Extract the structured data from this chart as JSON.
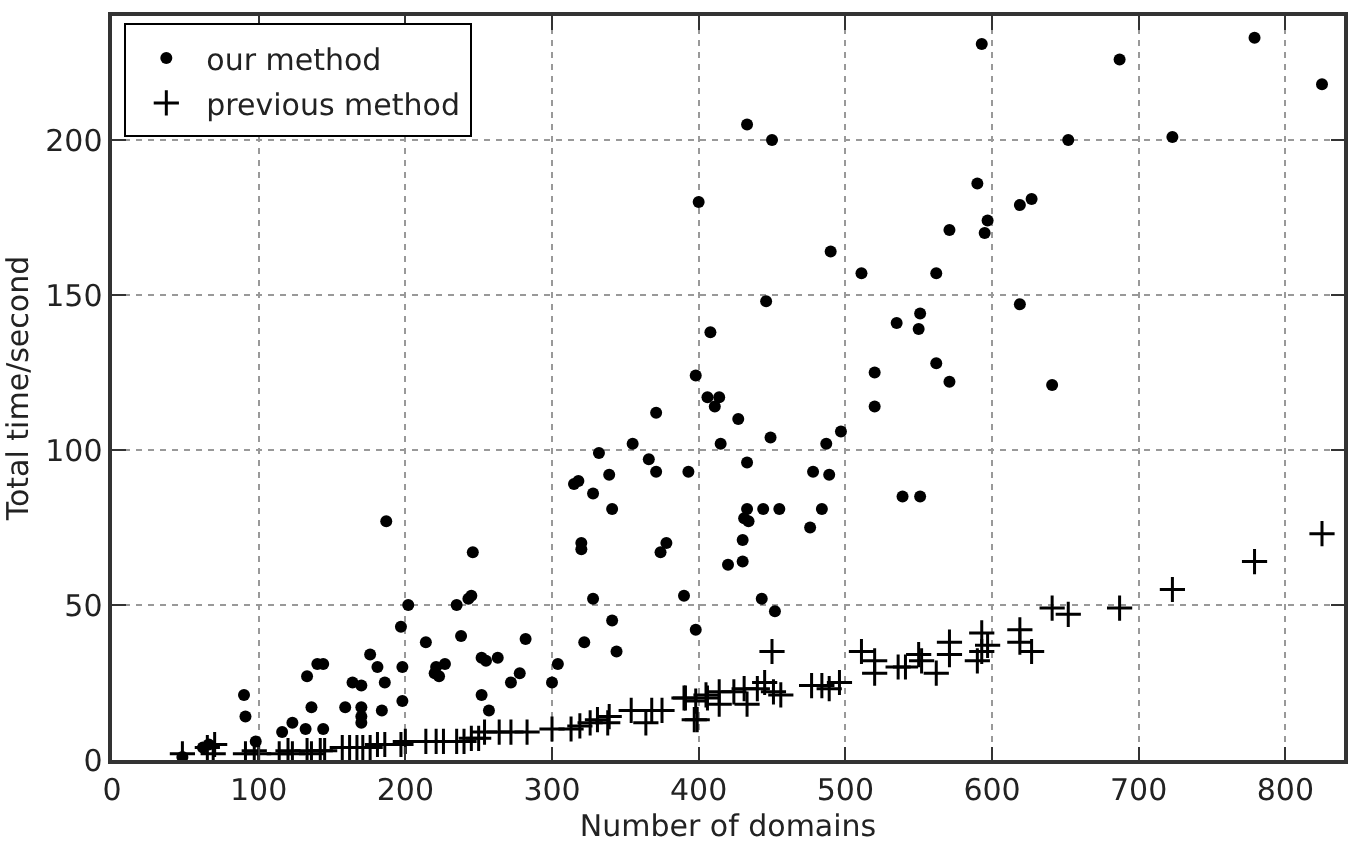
{
  "chart_data": {
    "type": "scatter",
    "xlabel": "Number of domains",
    "ylabel": "Total time/second",
    "xlim": [
      0,
      840
    ],
    "ylim": [
      0,
      240
    ],
    "xticks": [
      0,
      100,
      200,
      300,
      400,
      500,
      600,
      700,
      800
    ],
    "yticks": [
      0,
      50,
      100,
      150,
      200
    ],
    "grid": true,
    "legend": "top left",
    "series": [
      {
        "name": "our method",
        "color": "#000000",
        "marker": "circle",
        "x": [
          48,
          62,
          66,
          90,
          91,
          98,
          116,
          123,
          132,
          133,
          136,
          140,
          144,
          144,
          159,
          164,
          170,
          170,
          170,
          170,
          176,
          181,
          184,
          186,
          187,
          197,
          198,
          198,
          202,
          214,
          220,
          221,
          223,
          227,
          235,
          238,
          243,
          245,
          246,
          252,
          255,
          252,
          257,
          263,
          272,
          278,
          282,
          300,
          304,
          315,
          318,
          320,
          320,
          322,
          328,
          328,
          332,
          339,
          341,
          341,
          344,
          355,
          366,
          371,
          371,
          374,
          378,
          390,
          393,
          398,
          398,
          400,
          406,
          414,
          408,
          411,
          415,
          420,
          427,
          430,
          430,
          431,
          434,
          433,
          433,
          433,
          443,
          444,
          446,
          449,
          450,
          452,
          455,
          476,
          478,
          484,
          487,
          489,
          490,
          497,
          511,
          520,
          520,
          535,
          539,
          550,
          551,
          551,
          562,
          562,
          571,
          571,
          590,
          593,
          595,
          597,
          619,
          627,
          619,
          641,
          652,
          687,
          723,
          779,
          825
        ],
        "values": [
          1,
          4,
          5,
          21,
          14,
          6,
          9,
          12,
          10,
          27,
          17,
          31,
          31,
          10,
          17,
          25,
          24,
          17,
          14,
          12,
          34,
          30,
          16,
          25,
          77,
          43,
          30,
          19,
          50,
          38,
          28,
          30,
          27,
          31,
          50,
          40,
          52,
          53,
          67,
          33,
          32,
          21,
          16,
          33,
          25,
          28,
          39,
          25,
          31,
          89,
          90,
          70,
          68,
          38,
          86,
          52,
          99,
          92,
          81,
          45,
          35,
          102,
          97,
          112,
          93,
          67,
          70,
          53,
          93,
          124,
          42,
          180,
          117,
          117,
          138,
          114,
          102,
          63,
          110,
          71,
          64,
          78,
          77,
          205,
          96,
          81,
          52,
          81,
          148,
          104,
          200,
          48,
          81,
          75,
          93,
          81,
          102,
          92,
          164,
          106,
          157,
          114,
          125,
          141,
          85,
          139,
          144,
          85,
          157,
          128,
          171,
          122,
          186,
          231,
          170,
          174,
          179,
          181,
          147,
          121,
          200,
          226,
          201,
          233,
          218
        ]
      },
      {
        "name": "previous method",
        "color": "#000000",
        "marker": "cross",
        "x": [
          48,
          65,
          70,
          69,
          91,
          97,
          100,
          114,
          120,
          123,
          133,
          136,
          142,
          145,
          157,
          162,
          167,
          171,
          176,
          181,
          186,
          197,
          200,
          214,
          221,
          226,
          235,
          240,
          245,
          250,
          254,
          264,
          272,
          283,
          300,
          313,
          319,
          326,
          331,
          338,
          339,
          354,
          364,
          368,
          375,
          390,
          397,
          398,
          399,
          391,
          405,
          406,
          414,
          414,
          424,
          431,
          433,
          440,
          445,
          451,
          456,
          450,
          477,
          484,
          489,
          496,
          511,
          520,
          520,
          536,
          541,
          550,
          552,
          562,
          571,
          571,
          590,
          593,
          593,
          597,
          619,
          619,
          627,
          641,
          652,
          687,
          723,
          779,
          825
        ],
        "values": [
          2,
          4,
          5,
          2,
          2,
          3,
          2,
          2,
          3,
          2,
          3,
          2,
          3,
          3,
          4,
          4,
          4,
          4,
          4,
          5,
          5,
          5,
          6,
          6,
          6,
          6,
          6,
          6,
          7,
          7,
          9,
          9,
          9,
          9,
          10,
          10,
          11,
          12,
          13,
          12,
          14,
          16,
          12,
          16,
          16,
          20,
          13,
          19,
          13,
          20,
          21,
          20,
          22,
          18,
          22,
          23,
          18,
          23,
          25,
          22,
          21,
          35,
          24,
          24,
          23,
          25,
          35,
          32,
          28,
          30,
          30,
          34,
          32,
          28,
          34,
          38,
          32,
          35,
          41,
          37,
          42,
          38,
          35,
          49,
          47,
          49,
          55,
          64,
          73
        ]
      }
    ]
  }
}
